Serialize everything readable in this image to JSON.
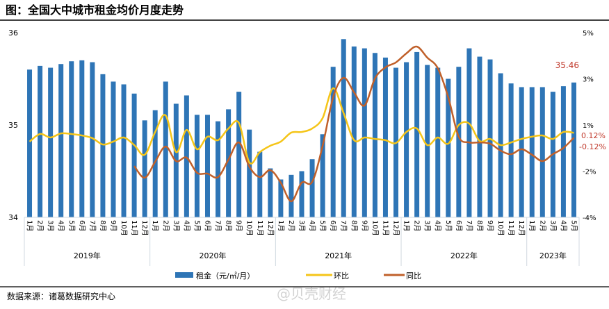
{
  "title": "图：全国大中城市租金均价月度走势",
  "source": "数据来源：诸葛数据研究中心",
  "watermark": "@贝壳财经",
  "colors": {
    "bar": "#2E75B6",
    "mom": "#F5C518",
    "yoy": "#C0602A",
    "annotation": "#C0392B"
  },
  "chart_data": {
    "type": "bar+line",
    "categories_month": [
      "1月",
      "2月",
      "3月",
      "4月",
      "5月",
      "6月",
      "7月",
      "8月",
      "9月",
      "10月",
      "11月",
      "12月",
      "1月",
      "2月",
      "3月",
      "4月",
      "5月",
      "6月",
      "7月",
      "8月",
      "9月",
      "10月",
      "11月",
      "12月",
      "1月",
      "2月",
      "3月",
      "4月",
      "5月",
      "6月",
      "7月",
      "8月",
      "9月",
      "10月",
      "11月",
      "12月",
      "1月",
      "2月",
      "3月",
      "4月",
      "5月",
      "6月",
      "7月",
      "8月",
      "9月",
      "10月",
      "11月",
      "12月",
      "1月",
      "2月",
      "3月",
      "4月",
      "5月"
    ],
    "years": [
      {
        "label": "2019年",
        "months": 12
      },
      {
        "label": "2020年",
        "months": 12
      },
      {
        "label": "2021年",
        "months": 12
      },
      {
        "label": "2022年",
        "months": 12
      },
      {
        "label": "2023年",
        "months": 5
      }
    ],
    "y_left": {
      "range": [
        34,
        36
      ],
      "ticks": [
        "34",
        "35",
        "36"
      ]
    },
    "y_right": {
      "range": [
        -4,
        5
      ],
      "ticks": [
        "-4%",
        "-2%",
        "1%",
        "3%",
        "5%"
      ],
      "unit": "%"
    },
    "series": [
      {
        "name": "租金（元/㎡/月）",
        "type": "bar",
        "axis": "left",
        "values": [
          35.6,
          35.64,
          35.62,
          35.66,
          35.69,
          35.7,
          35.68,
          35.55,
          35.47,
          35.44,
          35.34,
          35.05,
          35.16,
          35.47,
          35.23,
          35.32,
          35.11,
          35.11,
          35.04,
          35.17,
          35.36,
          34.95,
          34.71,
          34.53,
          34.41,
          34.46,
          34.5,
          34.63,
          34.9,
          35.63,
          35.93,
          35.85,
          35.83,
          35.78,
          35.73,
          35.62,
          35.68,
          35.79,
          35.65,
          35.62,
          35.5,
          35.63,
          35.83,
          35.74,
          35.71,
          35.56,
          35.45,
          35.41,
          35.41,
          35.41,
          35.36,
          35.42,
          35.46
        ]
      },
      {
        "name": "环比",
        "type": "line",
        "axis": "right",
        "values": [
          -0.31,
          0.06,
          -0.11,
          0.09,
          0.06,
          -0.01,
          -0.14,
          -0.45,
          -0.31,
          -0.11,
          -0.48,
          -0.95,
          0.16,
          0.97,
          -0.82,
          0.26,
          -0.68,
          -0.07,
          -0.24,
          0.33,
          0.6,
          -1.33,
          -0.82,
          -0.51,
          -0.31,
          0.13,
          0.16,
          0.33,
          0.84,
          2.29,
          1.08,
          -0.24,
          -0.11,
          -0.18,
          -0.24,
          -0.38,
          0.16,
          0.33,
          -0.48,
          -0.11,
          -0.41,
          0.5,
          0.57,
          -0.28,
          -0.18,
          -0.48,
          -0.35,
          -0.18,
          -0.07,
          -0.01,
          -0.18,
          0.16,
          0.12
        ]
      },
      {
        "name": "同比",
        "type": "line",
        "axis": "right",
        "values": [
          null,
          null,
          null,
          null,
          null,
          null,
          null,
          null,
          null,
          null,
          -1.5,
          -2.07,
          -1.29,
          -0.55,
          -1.26,
          -1.09,
          -1.83,
          -1.87,
          -2.04,
          -1.19,
          -0.35,
          -1.53,
          -2.04,
          -1.7,
          -2.31,
          -3.22,
          -2.31,
          -2.27,
          -0.51,
          1.85,
          2.8,
          2.09,
          1.45,
          2.77,
          3.31,
          3.55,
          3.99,
          4.32,
          3.78,
          3.27,
          1.85,
          -0.07,
          -0.35,
          -0.35,
          -0.41,
          -0.75,
          -0.92,
          -0.68,
          -0.95,
          -1.26,
          -0.92,
          -0.62,
          -0.12
        ]
      }
    ],
    "annotations": {
      "last_rent": "35.46",
      "last_mom": "0.12%",
      "last_yoy": "-0.12%"
    },
    "legend": {
      "placement": "bottom",
      "items": [
        "租金（元/㎡/月）",
        "环比",
        "同比"
      ]
    },
    "grid": false
  }
}
